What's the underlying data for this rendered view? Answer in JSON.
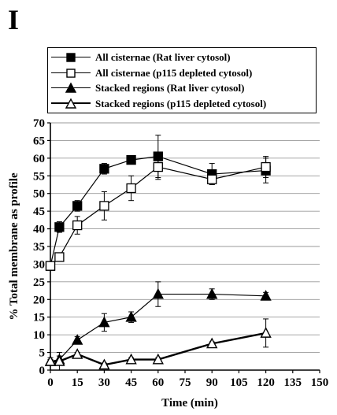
{
  "panel_letter": "I",
  "chart_data": {
    "type": "line",
    "xlabel": "Time (min)",
    "ylabel": "% Total membrane as profile",
    "xlim": [
      0,
      150
    ],
    "ylim": [
      0,
      70
    ],
    "xticks": [
      0,
      15,
      30,
      45,
      60,
      75,
      90,
      105,
      120,
      135,
      150
    ],
    "yticks": [
      0,
      5,
      10,
      15,
      20,
      25,
      30,
      35,
      40,
      45,
      50,
      55,
      60,
      65,
      70
    ],
    "grid": "horizontal",
    "legend_position": "top",
    "series": [
      {
        "name": "All cisternae (Rat liver cytosol)",
        "marker": "square-filled",
        "line": "thin",
        "x": [
          0,
          5,
          15,
          30,
          45,
          60,
          90,
          120
        ],
        "y": [
          29.5,
          40.5,
          46.5,
          57,
          59.5,
          60.5,
          55.5,
          56.5
        ],
        "err": [
          1.0,
          1.5,
          1.5,
          1.5,
          1.0,
          6.0,
          3.0,
          3.5
        ]
      },
      {
        "name": "All cisternae (p115 depleted cytosol)",
        "marker": "square-open",
        "line": "thin",
        "x": [
          0,
          5,
          15,
          30,
          45,
          60,
          90,
          120
        ],
        "y": [
          29.5,
          32,
          41,
          46.5,
          51.5,
          57.5,
          54,
          57.5
        ],
        "err": [
          1.0,
          1.0,
          2.5,
          4.0,
          3.5,
          3.5,
          1.5,
          3.0
        ]
      },
      {
        "name": "Stacked regions (Rat liver cytosol)",
        "marker": "triangle-filled",
        "line": "thin",
        "x": [
          0,
          5,
          15,
          30,
          45,
          60,
          90,
          120
        ],
        "y": [
          2.5,
          3,
          8.5,
          13.5,
          15,
          21.5,
          21.5,
          21
        ],
        "err": [
          1.0,
          1.0,
          1.0,
          2.5,
          1.5,
          3.5,
          1.5,
          1.0
        ]
      },
      {
        "name": "Stacked regions (p115 depleted cytosol)",
        "marker": "triangle-open",
        "line": "bold",
        "x": [
          0,
          5,
          15,
          30,
          45,
          60,
          90,
          120
        ],
        "y": [
          2.5,
          2.5,
          4.5,
          1.5,
          3,
          3,
          7.5,
          10.5
        ],
        "err": [
          0.5,
          2.5,
          0.5,
          0.5,
          0.5,
          0.5,
          0.5,
          4.0
        ]
      }
    ]
  }
}
